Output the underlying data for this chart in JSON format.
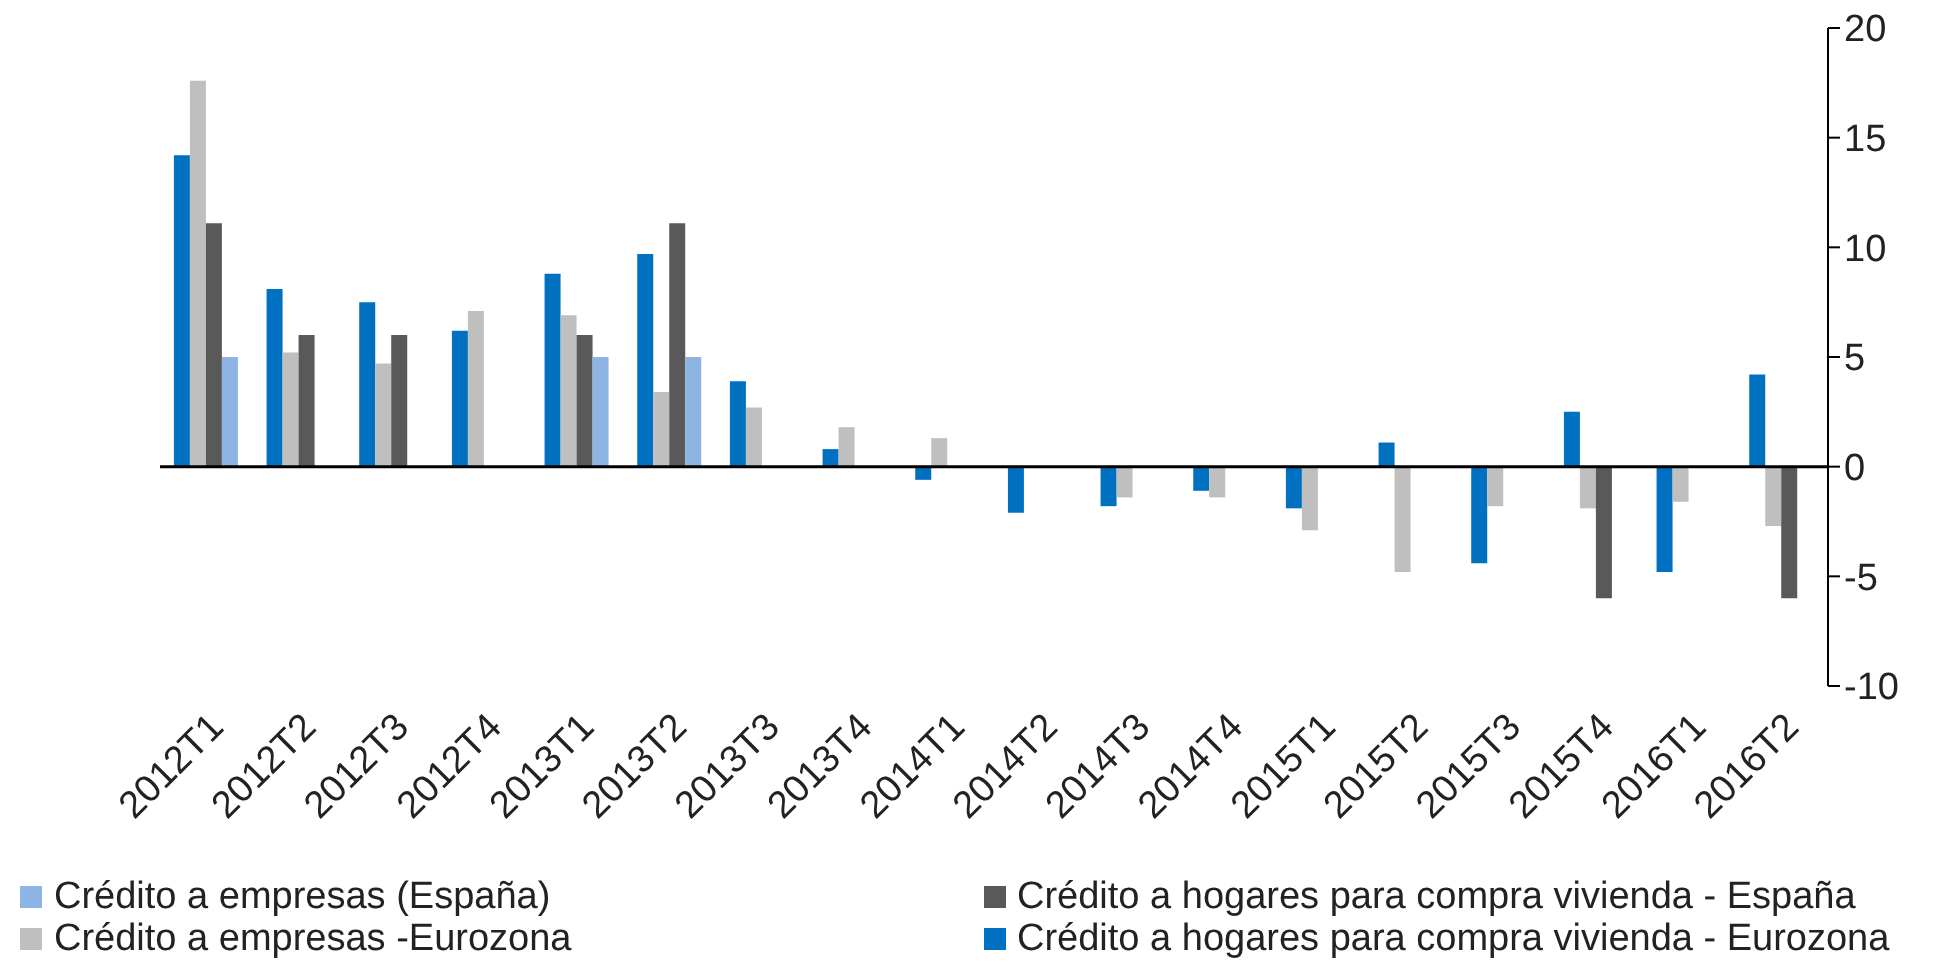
{
  "chart_data": {
    "type": "bar",
    "categories": [
      "2012T1",
      "2012T2",
      "2012T3",
      "2012T4",
      "2013T1",
      "2013T2",
      "2013T3",
      "2013T4",
      "2014T1",
      "2014T2",
      "2014T3",
      "2014T4",
      "2015T1",
      "2015T2",
      "2015T3",
      "2015T4",
      "2016T1",
      "2016T2"
    ],
    "series": [
      {
        "name": "Crédito a hogares para compra vivienda - Eurozona",
        "color": "#0070c0",
        "values": [
          14.2,
          8.1,
          7.5,
          6.2,
          8.8,
          9.7,
          3.9,
          0.8,
          -0.6,
          -2.1,
          -1.8,
          -1.1,
          -1.9,
          1.1,
          -4.4,
          2.5,
          -4.8,
          4.2
        ]
      },
      {
        "name": "Crédito a empresas -Eurozona",
        "color": "#bfbfbf",
        "values": [
          17.6,
          5.2,
          4.7,
          7.1,
          6.9,
          3.4,
          2.7,
          1.8,
          1.3,
          null,
          -1.4,
          -1.4,
          -2.9,
          -4.8,
          -1.8,
          -1.9,
          -1.6,
          -2.7
        ]
      },
      {
        "name": "Crédito a hogares para compra vivienda - España",
        "color": "#595959",
        "values": [
          11.1,
          6.0,
          6.0,
          null,
          6.0,
          11.1,
          null,
          null,
          null,
          null,
          null,
          null,
          null,
          null,
          null,
          -6.0,
          null,
          -6.0
        ]
      },
      {
        "name": "Crédito a empresas (España)",
        "color": "#8eb4e3",
        "values": [
          5.0,
          null,
          null,
          null,
          5.0,
          5.0,
          null,
          null,
          null,
          null,
          null,
          null,
          null,
          null,
          null,
          null,
          null,
          null
        ]
      }
    ],
    "ylim": [
      -10,
      20
    ],
    "yticks": [
      -10,
      -5,
      0,
      5,
      10,
      15,
      20
    ],
    "ref_lines": [
      {
        "axis": "y",
        "value": 0,
        "color": "#000000"
      }
    ],
    "legend": "bottom"
  }
}
